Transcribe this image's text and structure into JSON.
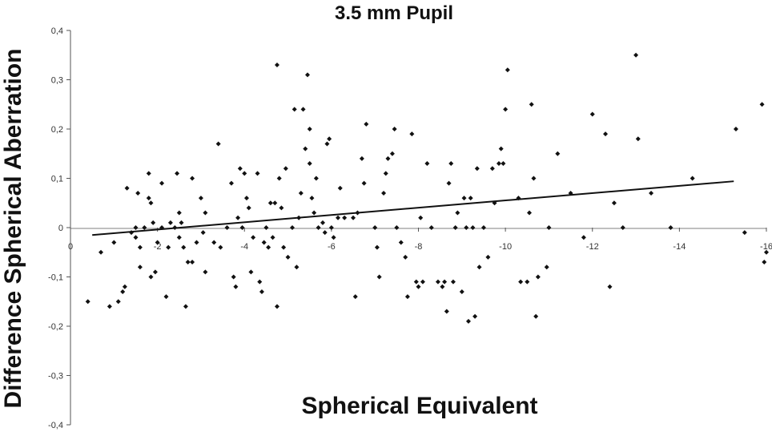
{
  "chart_data": {
    "type": "scatter",
    "title": "3.5 mm Pupil",
    "xlabel": "Spherical Equivalent",
    "ylabel": "Difference Spherical Aberration",
    "xlim": [
      0,
      -16
    ],
    "ylim": [
      -0.4,
      0.4
    ],
    "x_ticks": [
      "0",
      "-2",
      "-4",
      "-6",
      "-8",
      "-10",
      "-12",
      "-14",
      "-16"
    ],
    "y_ticks": [
      "0,4",
      "0,3",
      "0,2",
      "0,1",
      "0",
      "-0,1",
      "-0,2",
      "-0,3",
      "-0,4"
    ],
    "trendline": {
      "x": [
        -0.5,
        -15.25
      ],
      "y": [
        -0.015,
        0.094
      ]
    },
    "points": [
      {
        "x": -0.4,
        "y": -0.15
      },
      {
        "x": -0.7,
        "y": -0.05
      },
      {
        "x": -0.9,
        "y": -0.16
      },
      {
        "x": -1.0,
        "y": -0.03
      },
      {
        "x": -1.1,
        "y": -0.15
      },
      {
        "x": -1.2,
        "y": -0.13
      },
      {
        "x": -1.25,
        "y": -0.12
      },
      {
        "x": -1.3,
        "y": 0.08
      },
      {
        "x": -1.4,
        "y": -0.01
      },
      {
        "x": -1.5,
        "y": 0.0
      },
      {
        "x": -1.5,
        "y": -0.02
      },
      {
        "x": -1.55,
        "y": 0.07
      },
      {
        "x": -1.6,
        "y": -0.04
      },
      {
        "x": -1.6,
        "y": -0.08
      },
      {
        "x": -1.7,
        "y": 0.0
      },
      {
        "x": -1.8,
        "y": 0.11
      },
      {
        "x": -1.8,
        "y": 0.06
      },
      {
        "x": -1.85,
        "y": 0.05
      },
      {
        "x": -1.85,
        "y": -0.1
      },
      {
        "x": -1.9,
        "y": 0.01
      },
      {
        "x": -1.95,
        "y": -0.09
      },
      {
        "x": -2.0,
        "y": -0.03
      },
      {
        "x": -2.1,
        "y": 0.0
      },
      {
        "x": -2.1,
        "y": 0.09
      },
      {
        "x": -2.2,
        "y": -0.14
      },
      {
        "x": -2.25,
        "y": -0.04
      },
      {
        "x": -2.3,
        "y": 0.01
      },
      {
        "x": -2.4,
        "y": 0.0
      },
      {
        "x": -2.45,
        "y": 0.11
      },
      {
        "x": -2.5,
        "y": 0.03
      },
      {
        "x": -2.5,
        "y": -0.02
      },
      {
        "x": -2.55,
        "y": 0.01
      },
      {
        "x": -2.6,
        "y": -0.04
      },
      {
        "x": -2.65,
        "y": -0.16
      },
      {
        "x": -2.7,
        "y": -0.07
      },
      {
        "x": -2.8,
        "y": 0.1
      },
      {
        "x": -2.8,
        "y": -0.07
      },
      {
        "x": -2.9,
        "y": -0.03
      },
      {
        "x": -3.0,
        "y": 0.06
      },
      {
        "x": -3.05,
        "y": -0.01
      },
      {
        "x": -3.1,
        "y": 0.03
      },
      {
        "x": -3.1,
        "y": -0.09
      },
      {
        "x": -3.3,
        "y": -0.03
      },
      {
        "x": -3.4,
        "y": 0.17
      },
      {
        "x": -3.45,
        "y": -0.04
      },
      {
        "x": -3.6,
        "y": 0.0
      },
      {
        "x": -3.7,
        "y": 0.09
      },
      {
        "x": -3.75,
        "y": -0.1
      },
      {
        "x": -3.8,
        "y": -0.12
      },
      {
        "x": -3.85,
        "y": 0.02
      },
      {
        "x": -3.9,
        "y": 0.12
      },
      {
        "x": -3.95,
        "y": 0.0
      },
      {
        "x": -4.0,
        "y": 0.11
      },
      {
        "x": -4.05,
        "y": 0.06
      },
      {
        "x": -4.1,
        "y": 0.04
      },
      {
        "x": -4.15,
        "y": -0.09
      },
      {
        "x": -4.2,
        "y": -0.02
      },
      {
        "x": -4.3,
        "y": 0.11
      },
      {
        "x": -4.35,
        "y": -0.11
      },
      {
        "x": -4.4,
        "y": -0.13
      },
      {
        "x": -4.45,
        "y": -0.03
      },
      {
        "x": -4.5,
        "y": 0.0
      },
      {
        "x": -4.55,
        "y": -0.04
      },
      {
        "x": -4.6,
        "y": 0.05
      },
      {
        "x": -4.65,
        "y": -0.02
      },
      {
        "x": -4.7,
        "y": 0.05
      },
      {
        "x": -4.75,
        "y": -0.16
      },
      {
        "x": -4.75,
        "y": 0.33
      },
      {
        "x": -4.8,
        "y": 0.1
      },
      {
        "x": -4.85,
        "y": 0.04
      },
      {
        "x": -4.9,
        "y": -0.04
      },
      {
        "x": -4.95,
        "y": 0.12
      },
      {
        "x": -5.0,
        "y": -0.06
      },
      {
        "x": -5.1,
        "y": 0.0
      },
      {
        "x": -5.15,
        "y": 0.24
      },
      {
        "x": -5.2,
        "y": -0.08
      },
      {
        "x": -5.25,
        "y": 0.02
      },
      {
        "x": -5.3,
        "y": 0.07
      },
      {
        "x": -5.35,
        "y": 0.24
      },
      {
        "x": -5.4,
        "y": 0.16
      },
      {
        "x": -5.45,
        "y": 0.31
      },
      {
        "x": -5.5,
        "y": 0.2
      },
      {
        "x": -5.5,
        "y": 0.13
      },
      {
        "x": -5.55,
        "y": 0.06
      },
      {
        "x": -5.6,
        "y": 0.03
      },
      {
        "x": -5.65,
        "y": 0.1
      },
      {
        "x": -5.7,
        "y": 0.0
      },
      {
        "x": -5.8,
        "y": 0.01
      },
      {
        "x": -5.85,
        "y": -0.01
      },
      {
        "x": -5.9,
        "y": 0.17
      },
      {
        "x": -5.95,
        "y": 0.18
      },
      {
        "x": -6.0,
        "y": 0.0
      },
      {
        "x": -6.05,
        "y": -0.02
      },
      {
        "x": -6.15,
        "y": 0.02
      },
      {
        "x": -6.2,
        "y": 0.08
      },
      {
        "x": -6.3,
        "y": 0.02
      },
      {
        "x": -6.5,
        "y": 0.02
      },
      {
        "x": -6.55,
        "y": -0.14
      },
      {
        "x": -6.6,
        "y": 0.03
      },
      {
        "x": -6.7,
        "y": 0.14
      },
      {
        "x": -6.75,
        "y": 0.09
      },
      {
        "x": -6.8,
        "y": 0.21
      },
      {
        "x": -7.0,
        "y": 0.0
      },
      {
        "x": -7.05,
        "y": -0.04
      },
      {
        "x": -7.1,
        "y": -0.1
      },
      {
        "x": -7.2,
        "y": 0.07
      },
      {
        "x": -7.25,
        "y": 0.11
      },
      {
        "x": -7.3,
        "y": 0.14
      },
      {
        "x": -7.4,
        "y": 0.15
      },
      {
        "x": -7.45,
        "y": 0.2
      },
      {
        "x": -7.5,
        "y": 0.0
      },
      {
        "x": -7.6,
        "y": -0.03
      },
      {
        "x": -7.7,
        "y": -0.06
      },
      {
        "x": -7.75,
        "y": -0.14
      },
      {
        "x": -7.85,
        "y": 0.19
      },
      {
        "x": -7.95,
        "y": -0.11
      },
      {
        "x": -8.0,
        "y": -0.12
      },
      {
        "x": -8.05,
        "y": 0.02
      },
      {
        "x": -8.1,
        "y": -0.11
      },
      {
        "x": -8.2,
        "y": 0.13
      },
      {
        "x": -8.3,
        "y": 0.0
      },
      {
        "x": -8.45,
        "y": -0.11
      },
      {
        "x": -8.55,
        "y": -0.12
      },
      {
        "x": -8.6,
        "y": -0.11
      },
      {
        "x": -8.65,
        "y": -0.17
      },
      {
        "x": -8.7,
        "y": 0.09
      },
      {
        "x": -8.75,
        "y": 0.13
      },
      {
        "x": -8.8,
        "y": -0.11
      },
      {
        "x": -8.85,
        "y": 0.0
      },
      {
        "x": -8.9,
        "y": 0.03
      },
      {
        "x": -9.0,
        "y": -0.13
      },
      {
        "x": -9.05,
        "y": 0.06
      },
      {
        "x": -9.1,
        "y": 0.0
      },
      {
        "x": -9.15,
        "y": -0.19
      },
      {
        "x": -9.2,
        "y": 0.06
      },
      {
        "x": -9.25,
        "y": 0.0
      },
      {
        "x": -9.3,
        "y": -0.18
      },
      {
        "x": -9.35,
        "y": 0.12
      },
      {
        "x": -9.4,
        "y": -0.08
      },
      {
        "x": -9.5,
        "y": 0.0
      },
      {
        "x": -9.6,
        "y": -0.06
      },
      {
        "x": -9.7,
        "y": 0.12
      },
      {
        "x": -9.75,
        "y": 0.05
      },
      {
        "x": -9.85,
        "y": 0.13
      },
      {
        "x": -9.9,
        "y": 0.16
      },
      {
        "x": -9.95,
        "y": 0.13
      },
      {
        "x": -10.0,
        "y": 0.24
      },
      {
        "x": -10.05,
        "y": 0.32
      },
      {
        "x": -10.3,
        "y": 0.06
      },
      {
        "x": -10.35,
        "y": -0.11
      },
      {
        "x": -10.5,
        "y": -0.11
      },
      {
        "x": -10.55,
        "y": 0.03
      },
      {
        "x": -10.6,
        "y": 0.25
      },
      {
        "x": -10.65,
        "y": 0.1
      },
      {
        "x": -10.7,
        "y": -0.18
      },
      {
        "x": -10.75,
        "y": -0.1
      },
      {
        "x": -10.95,
        "y": -0.08
      },
      {
        "x": -11.0,
        "y": 0.0
      },
      {
        "x": -11.2,
        "y": 0.15
      },
      {
        "x": -11.5,
        "y": 0.07
      },
      {
        "x": -11.8,
        "y": -0.02
      },
      {
        "x": -12.0,
        "y": 0.23
      },
      {
        "x": -12.3,
        "y": 0.19
      },
      {
        "x": -12.4,
        "y": -0.12
      },
      {
        "x": -12.5,
        "y": 0.05
      },
      {
        "x": -12.7,
        "y": 0.0
      },
      {
        "x": -13.0,
        "y": 0.35
      },
      {
        "x": -13.05,
        "y": 0.18
      },
      {
        "x": -13.35,
        "y": 0.07
      },
      {
        "x": -13.8,
        "y": 0.0
      },
      {
        "x": -14.3,
        "y": 0.1
      },
      {
        "x": -15.3,
        "y": 0.2
      },
      {
        "x": -15.5,
        "y": -0.01
      },
      {
        "x": -15.9,
        "y": 0.25
      },
      {
        "x": -15.95,
        "y": -0.07
      },
      {
        "x": -16.0,
        "y": -0.05
      }
    ]
  }
}
